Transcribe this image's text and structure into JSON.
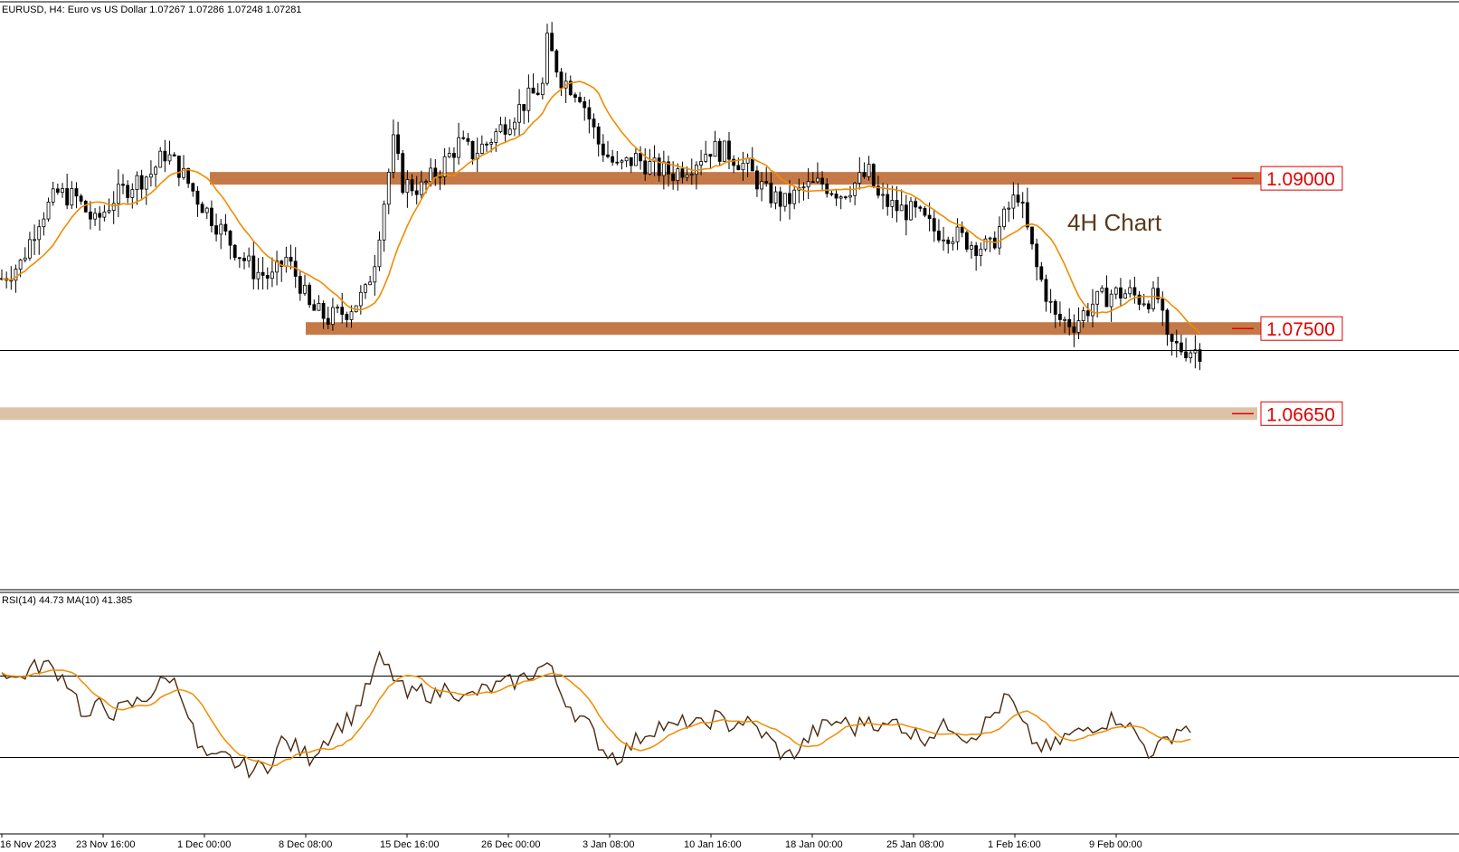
{
  "header": {
    "symbol_text": "EURUSD, H4:  Euro vs US Dollar  1.07267 1.07286 1.07248 1.07281"
  },
  "rsi_header": {
    "text": "RSI(14) 44.73 MA(10) 41.385"
  },
  "annotation": {
    "text": "4H Chart",
    "color": "#5a3a1a"
  },
  "colors": {
    "candle": "#000000",
    "ma_line": "#f08c00",
    "zone_strong": "#c47a48",
    "zone_light": "#dcc3a8",
    "level_label": "#e00000",
    "rsi_line": "#4a2a10",
    "rsi_ma": "#f08c00",
    "price_line": "#000000"
  },
  "chart_data": [
    {
      "type": "candlestick",
      "symbol": "EURUSD",
      "timeframe": "H4",
      "ylim": [
        1.05,
        1.106
      ],
      "current_price": 1.07281,
      "grid": false,
      "x_tick_labels": [
        "16 Nov 2023",
        "23 Nov 16:00",
        "1 Dec 00:00",
        "8 Dec 08:00",
        "15 Dec 16:00",
        "26 Dec 00:00",
        "3 Jan 08:00",
        "10 Jan 16:00",
        "18 Jan 00:00",
        "25 Jan 08:00",
        "1 Feb 16:00",
        "9 Feb 00:00"
      ],
      "close_path": [
        [
          0,
          1.08
        ],
        [
          4,
          1.0815
        ],
        [
          8,
          1.086
        ],
        [
          12,
          1.0885
        ],
        [
          16,
          1.088
        ],
        [
          20,
          1.0855
        ],
        [
          24,
          1.088
        ],
        [
          28,
          1.0895
        ],
        [
          32,
          1.0905
        ],
        [
          35,
          1.0925
        ],
        [
          38,
          1.091
        ],
        [
          42,
          1.088
        ],
        [
          46,
          1.0855
        ],
        [
          50,
          1.083
        ],
        [
          54,
          1.0808
        ],
        [
          58,
          1.08
        ],
        [
          61,
          1.082
        ],
        [
          64,
          1.0795
        ],
        [
          66,
          1.077
        ],
        [
          70,
          1.076
        ],
        [
          74,
          1.0768
        ],
        [
          78,
          1.0785
        ],
        [
          80,
          1.082
        ],
        [
          84,
          1.0935
        ],
        [
          86,
          1.0895
        ],
        [
          90,
          1.089
        ],
        [
          94,
          1.091
        ],
        [
          98,
          1.0935
        ],
        [
          101,
          1.0925
        ],
        [
          104,
          1.0935
        ],
        [
          108,
          1.0955
        ],
        [
          112,
          1.0975
        ],
        [
          116,
          1.0992
        ],
        [
          117,
          1.1035
        ],
        [
          120,
          1.1
        ],
        [
          124,
          1.0985
        ],
        [
          128,
          1.0935
        ],
        [
          132,
          1.091
        ],
        [
          136,
          1.092
        ],
        [
          140,
          1.091
        ],
        [
          144,
          1.0905
        ],
        [
          148,
          1.0915
        ],
        [
          152,
          1.093
        ],
        [
          156,
          1.0925
        ],
        [
          160,
          1.091
        ],
        [
          164,
          1.0885
        ],
        [
          168,
          1.0875
        ],
        [
          172,
          1.089
        ],
        [
          176,
          1.0895
        ],
        [
          180,
          1.0885
        ],
        [
          186,
          1.0905
        ],
        [
          188,
          1.088
        ],
        [
          192,
          1.087
        ],
        [
          196,
          1.0865
        ],
        [
          200,
          1.0848
        ],
        [
          204,
          1.0845
        ],
        [
          208,
          1.0835
        ],
        [
          212,
          1.083
        ],
        [
          216,
          1.087
        ],
        [
          218,
          1.0885
        ],
        [
          222,
          1.081
        ],
        [
          226,
          1.076
        ],
        [
          230,
          1.0755
        ],
        [
          234,
          1.0775
        ],
        [
          238,
          1.0785
        ],
        [
          242,
          1.0785
        ],
        [
          244,
          1.078
        ],
        [
          248,
          1.078
        ],
        [
          250,
          1.0735
        ],
        [
          253,
          1.073
        ],
        [
          257,
          1.0728
        ]
      ],
      "ma_period_note": "orange moving average on price",
      "levels": [
        {
          "price": 1.09,
          "label": "1.09000",
          "style": "strong"
        },
        {
          "price": 1.075,
          "label": "1.07500",
          "style": "strong"
        },
        {
          "price": 1.0665,
          "label": "1.06650",
          "style": "light"
        }
      ]
    },
    {
      "type": "line",
      "name": "RSI(14)",
      "ylim": [
        0,
        100
      ],
      "levels": [
        70,
        30
      ],
      "rsi_value": 44.73,
      "ma_value": 41.385,
      "rsi_path": [
        [
          0,
          74
        ],
        [
          3,
          68
        ],
        [
          6,
          73
        ],
        [
          9,
          76
        ],
        [
          12,
          72
        ],
        [
          15,
          65
        ],
        [
          18,
          48
        ],
        [
          21,
          56
        ],
        [
          24,
          52
        ],
        [
          27,
          55
        ],
        [
          30,
          58
        ],
        [
          33,
          64
        ],
        [
          36,
          70
        ],
        [
          39,
          60
        ],
        [
          42,
          35
        ],
        [
          45,
          28
        ],
        [
          48,
          30
        ],
        [
          51,
          26
        ],
        [
          54,
          24
        ],
        [
          57,
          26
        ],
        [
          60,
          38
        ],
        [
          63,
          35
        ],
        [
          66,
          30
        ],
        [
          69,
          38
        ],
        [
          72,
          45
        ],
        [
          75,
          50
        ],
        [
          78,
          62
        ],
        [
          81,
          78
        ],
        [
          84,
          70
        ],
        [
          87,
          60
        ],
        [
          90,
          63
        ],
        [
          93,
          60
        ],
        [
          96,
          66
        ],
        [
          99,
          58
        ],
        [
          102,
          62
        ],
        [
          105,
          64
        ],
        [
          108,
          66
        ],
        [
          111,
          68
        ],
        [
          114,
          72
        ],
        [
          117,
          76
        ],
        [
          120,
          62
        ],
        [
          123,
          52
        ],
        [
          126,
          45
        ],
        [
          129,
          34
        ],
        [
          132,
          30
        ],
        [
          135,
          36
        ],
        [
          138,
          42
        ],
        [
          141,
          46
        ],
        [
          144,
          44
        ],
        [
          147,
          48
        ],
        [
          150,
          45
        ],
        [
          153,
          50
        ],
        [
          156,
          46
        ],
        [
          159,
          48
        ],
        [
          162,
          44
        ],
        [
          165,
          38
        ],
        [
          168,
          30
        ],
        [
          171,
          34
        ],
        [
          174,
          42
        ],
        [
          177,
          46
        ],
        [
          180,
          48
        ],
        [
          183,
          44
        ],
        [
          186,
          50
        ],
        [
          189,
          44
        ],
        [
          192,
          48
        ],
        [
          195,
          42
        ],
        [
          198,
          40
        ],
        [
          201,
          44
        ],
        [
          204,
          46
        ],
        [
          207,
          40
        ],
        [
          210,
          44
        ],
        [
          213,
          52
        ],
        [
          216,
          60
        ],
        [
          219,
          45
        ],
        [
          222,
          36
        ],
        [
          225,
          34
        ],
        [
          228,
          40
        ],
        [
          231,
          42
        ],
        [
          234,
          46
        ],
        [
          237,
          48
        ],
        [
          240,
          50
        ],
        [
          243,
          42
        ],
        [
          246,
          33
        ],
        [
          249,
          36
        ],
        [
          252,
          44
        ],
        [
          255,
          45
        ]
      ]
    }
  ]
}
